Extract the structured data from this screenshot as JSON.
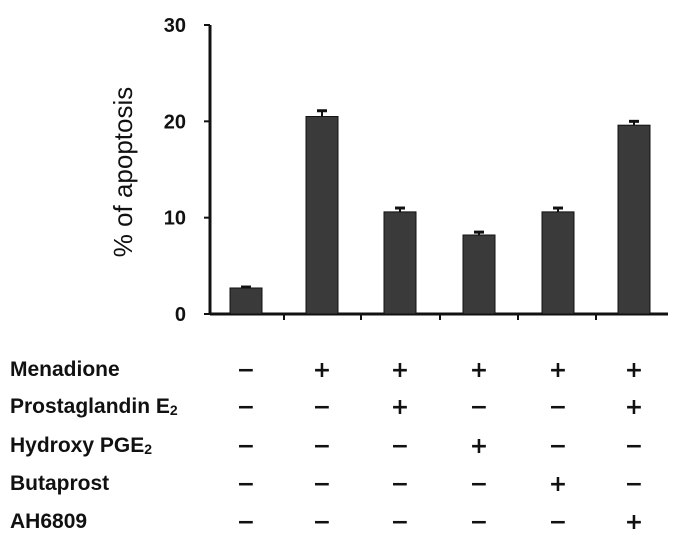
{
  "chart_data": {
    "type": "bar",
    "ylabel": "% of apoptosis",
    "ylim": [
      0,
      30
    ],
    "yticks": [
      "0",
      "10",
      "20",
      "30"
    ],
    "bar_color": "#3a3a3a",
    "values": [
      2.7,
      20.5,
      10.6,
      8.2,
      10.6,
      19.6
    ],
    "errors": [
      0.1,
      0.6,
      0.4,
      0.3,
      0.4,
      0.4
    ],
    "conditions": [
      {
        "name": "Menadione",
        "marks": [
          "−",
          "+",
          "+",
          "+",
          "+",
          "+"
        ]
      },
      {
        "name": "Prostaglandin E2",
        "name_main": "Prostaglandin E",
        "name_sub": "2",
        "marks": [
          "−",
          "−",
          "+",
          "−",
          "−",
          "+"
        ]
      },
      {
        "name": "Hydroxy PGE2",
        "name_main": "Hydroxy PGE",
        "name_sub": "2",
        "marks": [
          "−",
          "−",
          "−",
          "+",
          "−",
          "−"
        ]
      },
      {
        "name": "Butaprost",
        "marks": [
          "−",
          "−",
          "−",
          "−",
          "+",
          "−"
        ]
      },
      {
        "name": "AH6809",
        "marks": [
          "−",
          "−",
          "−",
          "−",
          "−",
          "+"
        ]
      }
    ]
  }
}
